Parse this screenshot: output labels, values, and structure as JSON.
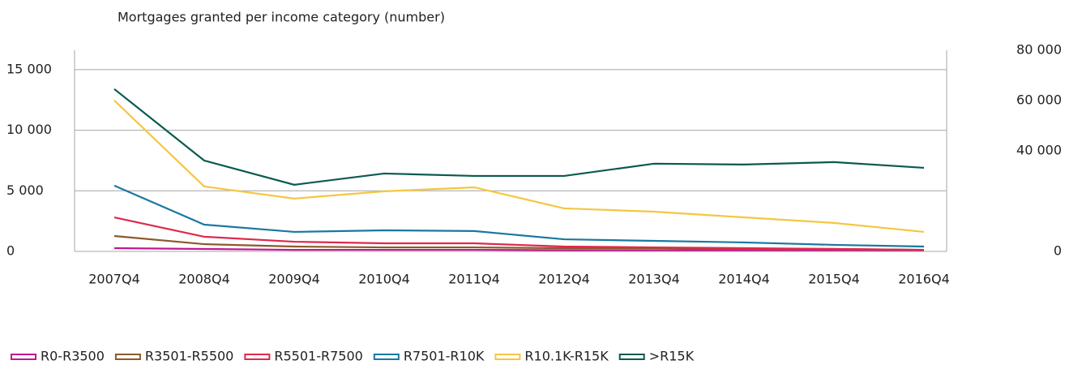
{
  "chart_data": {
    "type": "line",
    "title": "Mortgages granted per income category (number)",
    "categories": [
      "2007Q4",
      "2008Q4",
      "2009Q4",
      "2010Q4",
      "2011Q4",
      "2012Q4",
      "2013Q4",
      "2014Q4",
      "2015Q4",
      "2016Q4"
    ],
    "ylim": [
      0,
      16600
    ],
    "yticks": [
      0,
      {
        "value": 5000,
        "label": "5 000"
      },
      {
        "value": 10000,
        "label": "10 000"
      },
      {
        "value": 15000,
        "label": "15 000"
      }
    ],
    "y2lim": [
      0,
      80000
    ],
    "y2ticks": [
      0,
      {
        "value": 40000,
        "label": "40 000"
      },
      {
        "value": 60000,
        "label": "60 000"
      },
      {
        "value": 80000,
        "label": "80 000"
      }
    ],
    "grid": true,
    "legend": "bottom",
    "series": [
      {
        "name": "R0-R3500",
        "color": "#c2188f",
        "values": [
          270,
          200,
          130,
          130,
          130,
          100,
          100,
          100,
          100,
          100
        ]
      },
      {
        "name": "R3501-R5500",
        "color": "#8b5a2b",
        "values": [
          1270,
          600,
          400,
          330,
          330,
          270,
          270,
          200,
          200,
          130
        ]
      },
      {
        "name": "R5501-R7500",
        "color": "#e0284b",
        "values": [
          2810,
          1210,
          800,
          670,
          670,
          400,
          330,
          270,
          200,
          130
        ]
      },
      {
        "name": "R7501-R10K",
        "color": "#1a78a0",
        "values": [
          5430,
          2210,
          1610,
          1740,
          1680,
          1000,
          870,
          740,
          540,
          400
        ]
      },
      {
        "name": "R10.1K-R15K",
        "color": "#f5c642",
        "values": [
          12460,
          5360,
          4360,
          4960,
          5290,
          3550,
          3280,
          2810,
          2350,
          1610
        ]
      },
      {
        "name": ">R15K",
        "color": "#0b5a4e",
        "values": [
          13400,
          7500,
          5500,
          6430,
          6230,
          6230,
          7240,
          7170,
          7370,
          6900
        ]
      }
    ]
  }
}
